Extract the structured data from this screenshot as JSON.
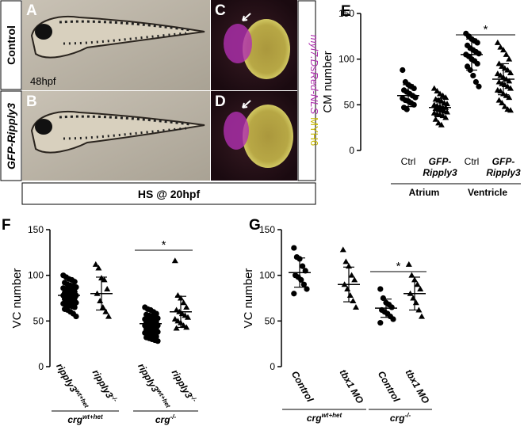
{
  "figure": {
    "panel_letters": [
      "A",
      "B",
      "C",
      "D",
      "E",
      "F",
      "G"
    ],
    "photo_labels": {
      "control": "Control",
      "gfp": "GFP-Ripply3",
      "stage": "48hpf",
      "heat_shock": "HS @ 20hpf",
      "marker_red": "myl7:DsRed-NLS",
      "marker_yellow": "MYH6"
    }
  },
  "chart_data": [
    {
      "type": "dot",
      "ylabel": "CM number",
      "ylim": [
        0,
        150
      ],
      "yticks": [
        0,
        50,
        100,
        150
      ],
      "categories": [
        [
          "Ctrl"
        ],
        [
          "GFP-",
          "Ripply3"
        ],
        [
          "Ctrl"
        ],
        [
          "GFP-",
          "Ripply3"
        ]
      ],
      "groups": [
        {
          "marker": "circle",
          "mean": 60,
          "sd": 12,
          "values": [
            88,
            75,
            72,
            70,
            68,
            66,
            64,
            62,
            60,
            58,
            57,
            55,
            54,
            52,
            50,
            47,
            45
          ]
        },
        {
          "marker": "triangle",
          "mean": 47,
          "sd": 10,
          "values": [
            68,
            65,
            62,
            60,
            58,
            56,
            55,
            54,
            52,
            51,
            50,
            49,
            48,
            47,
            47,
            46,
            45,
            44,
            43,
            42,
            41,
            40,
            39,
            38,
            36,
            34,
            30,
            28
          ]
        },
        {
          "marker": "circle",
          "mean": 105,
          "sd": 17,
          "values": [
            128,
            125,
            122,
            120,
            118,
            115,
            112,
            110,
            108,
            106,
            105,
            103,
            100,
            98,
            95,
            92,
            88,
            82,
            75,
            70
          ]
        },
        {
          "marker": "triangle",
          "mean": 78,
          "sd": 17,
          "values": [
            118,
            113,
            110,
            105,
            100,
            95,
            92,
            90,
            88,
            85,
            84,
            82,
            80,
            78,
            76,
            75,
            73,
            72,
            70,
            68,
            66,
            65,
            62,
            60,
            58,
            55,
            52,
            48,
            45,
            44
          ]
        }
      ],
      "brackets": [
        {
          "label": {
            "text": "Atrium"
          },
          "groups": [
            0,
            1
          ]
        },
        {
          "label": {
            "text": "Ventricle"
          },
          "groups": [
            2,
            3
          ]
        }
      ],
      "significance": {
        "label": "*",
        "groups": [
          2,
          3
        ]
      }
    },
    {
      "type": "dot",
      "ylabel": "VC number",
      "ylim": [
        0,
        150
      ],
      "yticks": [
        0,
        50,
        100,
        150
      ],
      "categories": [
        {
          "text": "ripply3",
          "sup": "wt+het"
        },
        {
          "text": "ripply3",
          "sup": "-/-"
        },
        {
          "text": "ripply3",
          "sup": "wt+het"
        },
        {
          "text": "ripply3",
          "sup": "-/-"
        }
      ],
      "groups": [
        {
          "marker": "circle",
          "mean": 78,
          "sd": 12,
          "values": [
            100,
            98,
            96,
            95,
            93,
            92,
            90,
            89,
            88,
            87,
            86,
            85,
            84,
            83,
            82,
            81,
            80,
            80,
            79,
            78,
            78,
            77,
            76,
            75,
            75,
            74,
            73,
            72,
            71,
            70,
            69,
            68,
            67,
            66,
            65,
            63,
            62,
            60,
            58,
            55
          ]
        },
        {
          "marker": "triangle",
          "mean": 80,
          "sd": 18,
          "values": [
            112,
            108,
            97,
            95,
            85,
            80,
            72,
            65,
            60,
            55
          ]
        },
        {
          "marker": "circle",
          "mean": 47,
          "sd": 10,
          "values": [
            65,
            63,
            62,
            60,
            58,
            57,
            56,
            55,
            54,
            53,
            52,
            51,
            50,
            50,
            49,
            48,
            48,
            47,
            46,
            45,
            45,
            44,
            43,
            42,
            42,
            41,
            40,
            40,
            39,
            38,
            37,
            36,
            35,
            34,
            33,
            32,
            31,
            30,
            29,
            28
          ]
        },
        {
          "marker": "triangle",
          "mean": 60,
          "sd": 17,
          "values": [
            116,
            78,
            75,
            70,
            65,
            62,
            60,
            58,
            56,
            54,
            52,
            50,
            48,
            45,
            43,
            42
          ]
        }
      ],
      "brackets": [
        {
          "label": {
            "text": "crg",
            "sup": "wt+het"
          },
          "groups": [
            0,
            1
          ]
        },
        {
          "label": {
            "text": "crg",
            "sup": "-/-"
          },
          "groups": [
            2,
            3
          ]
        }
      ],
      "significance": {
        "label": "*",
        "groups": [
          2,
          3
        ]
      }
    },
    {
      "type": "dot",
      "ylabel": "VC number",
      "ylim": [
        0,
        150
      ],
      "yticks": [
        0,
        50,
        100,
        150
      ],
      "categories": [
        {
          "text": "Control"
        },
        {
          "text": "tbx1 MO",
          "italic": true
        },
        {
          "text": "Control"
        },
        {
          "text": "tbx1 MO",
          "italic": true
        }
      ],
      "groups": [
        {
          "marker": "circle",
          "mean": 103,
          "sd": 16,
          "values": [
            130,
            120,
            118,
            110,
            105,
            100,
            98,
            95,
            90,
            85,
            80
          ]
        },
        {
          "marker": "triangle",
          "mean": 90,
          "sd": 19,
          "values": [
            128,
            115,
            110,
            100,
            95,
            90,
            85,
            78,
            72,
            65
          ]
        },
        {
          "marker": "circle",
          "mean": 64,
          "sd": 10,
          "values": [
            85,
            75,
            70,
            68,
            65,
            62,
            60,
            58,
            55,
            52,
            48
          ]
        },
        {
          "marker": "triangle",
          "mean": 80,
          "sd": 18,
          "values": [
            112,
            100,
            95,
            90,
            85,
            80,
            75,
            70,
            62,
            55
          ]
        }
      ],
      "brackets": [
        {
          "label": {
            "text": "crg",
            "sup": "wt+het"
          },
          "groups": [
            0,
            1
          ]
        },
        {
          "label": {
            "text": "crg",
            "sup": "-/-"
          },
          "groups": [
            2,
            3
          ]
        }
      ],
      "significance": {
        "label": "*",
        "groups": [
          2,
          3
        ]
      }
    }
  ]
}
